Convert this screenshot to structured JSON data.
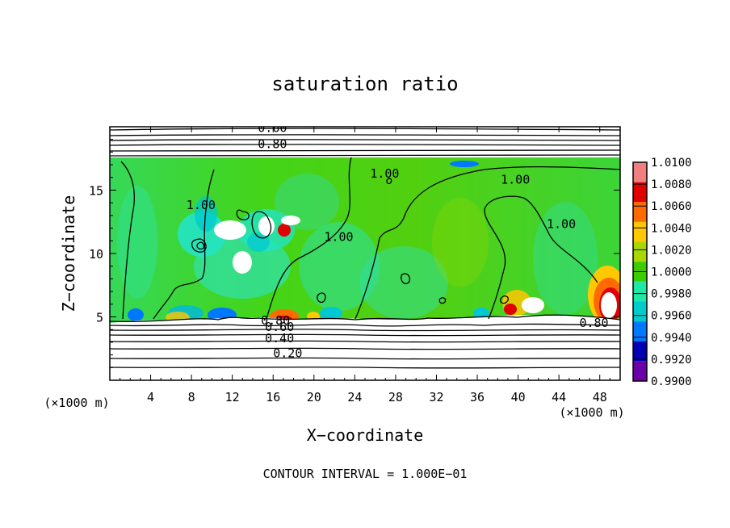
{
  "chart_data": {
    "type": "heatmap",
    "title": "saturation ratio",
    "xlabel": "X−coordinate",
    "ylabel": "Z−coordinate",
    "x_unit_left": "(×1000 m)",
    "x_unit_right": "(×1000 m)",
    "footer": "CONTOUR INTERVAL = 1.000E−01",
    "xlim": [
      0,
      50
    ],
    "ylim": [
      0,
      20
    ],
    "x_ticks": [
      4,
      8,
      12,
      16,
      20,
      24,
      28,
      32,
      36,
      40,
      44,
      48
    ],
    "y_ticks": [
      5,
      10,
      15
    ],
    "colorbar": {
      "labels": [
        "1.0100",
        "1.0080",
        "1.0060",
        "1.0040",
        "1.0020",
        "1.0000",
        "0.9980",
        "0.9960",
        "0.9940",
        "0.9920",
        "0.9900"
      ],
      "colors": [
        "#f08080",
        "#e00000",
        "#ff6a00",
        "#ffc800",
        "#a8d800",
        "#3ccc00",
        "#1ee8a8",
        "#00cccc",
        "#0078ff",
        "#0000b4",
        "#6a00a8"
      ]
    },
    "contour_labels": [
      {
        "text": "0.60",
        "x": 14.5,
        "z": 19.6
      },
      {
        "text": "0.80",
        "x": 14.5,
        "z": 18.3
      },
      {
        "text": "1.00",
        "x": 7.5,
        "z": 13.5
      },
      {
        "text": "1.00",
        "x": 21.0,
        "z": 11.0
      },
      {
        "text": "1.00",
        "x": 25.5,
        "z": 16.0
      },
      {
        "text": "1.00",
        "x": 38.3,
        "z": 15.5
      },
      {
        "text": "1.00",
        "x": 42.8,
        "z": 12.0
      },
      {
        "text": "0.80",
        "x": 14.8,
        "z": 4.4
      },
      {
        "text": "0.60",
        "x": 15.2,
        "z": 3.9
      },
      {
        "text": "0.40",
        "x": 15.2,
        "z": 3.0
      },
      {
        "text": "0.20",
        "x": 16.0,
        "z": 1.8
      },
      {
        "text": "0.80",
        "x": 46.0,
        "z": 4.2
      }
    ]
  }
}
